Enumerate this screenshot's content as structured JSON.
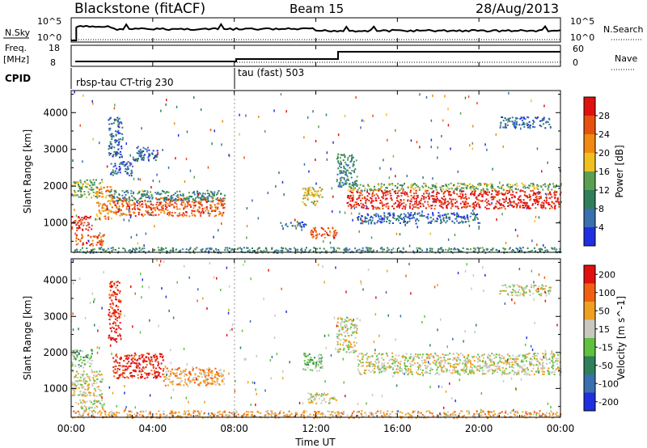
{
  "header": {
    "station": "Blackstone (fitACF)",
    "beam": "Beam 15",
    "date": "28/Aug/2013"
  },
  "strip_nsky": {
    "left_label": "N.Sky",
    "right_label": "N.Search",
    "tick_top": "10^5",
    "tick_bottom": "10^0"
  },
  "strip_freq": {
    "left_label_1": "Freq.",
    "left_label_2": "[MHz]",
    "left_tick_top": "18",
    "left_tick_bottom": "8",
    "right_label": "Nave",
    "right_tick_top": "60",
    "right_tick_bottom": "0"
  },
  "cpid": {
    "label": "CPID",
    "segments": [
      {
        "name": "rbsp-tau CT-trig 230",
        "start_h": 0,
        "end_h": 8
      },
      {
        "name": "tau (fast) 503",
        "start_h": 8,
        "end_h": 24
      }
    ]
  },
  "x_axis": {
    "title": "Time UT",
    "ticks": [
      "00:00",
      "04:00",
      "08:00",
      "12:00",
      "16:00",
      "20:00",
      "00:00"
    ],
    "range_h": [
      0,
      24
    ]
  },
  "colors": {
    "power_scale": [
      "#2030e0",
      "#3a6fb0",
      "#2e7f5a",
      "#5aa050",
      "#f0c020",
      "#f08a10",
      "#e85010",
      "#e01010"
    ],
    "velocity_scale": [
      "#2030e0",
      "#3a6fb0",
      "#2e7f5a",
      "#60c040",
      "#c8c8c0",
      "#f0a020",
      "#f06010",
      "#e01010"
    ]
  },
  "chart_data": [
    {
      "type": "heatmap",
      "title": "",
      "ylabel": "Slant Range [km]",
      "xlabel": "",
      "x_range_h": [
        0,
        24
      ],
      "ylim": [
        200,
        4600
      ],
      "y_ticks": [
        "1000",
        "2000",
        "3000",
        "4000"
      ],
      "y_tick_values": [
        1000,
        2000,
        3000,
        4000
      ],
      "colorbar_label": "Power [dB]",
      "colorbar_ticks": [
        "4",
        "8",
        "12",
        "16",
        "20",
        "24",
        "28"
      ],
      "colorbar_values": [
        4,
        8,
        12,
        16,
        20,
        24,
        28
      ],
      "features": [
        {
          "t0": 0.0,
          "t1": 1.0,
          "r0": 800,
          "r1": 1200,
          "level": 7
        },
        {
          "t0": 0.0,
          "t1": 1.5,
          "r0": 1700,
          "r1": 2200,
          "level": 3
        },
        {
          "t0": 0.2,
          "t1": 1.6,
          "r0": 400,
          "r1": 700,
          "level": 6
        },
        {
          "t0": 1.2,
          "t1": 2.0,
          "r0": 1100,
          "r1": 2000,
          "level": 5
        },
        {
          "t0": 2.0,
          "t1": 7.5,
          "r0": 1200,
          "r1": 1700,
          "level": 6
        },
        {
          "t0": 1.8,
          "t1": 7.5,
          "r0": 1600,
          "r1": 1900,
          "level": 2
        },
        {
          "t0": 1.9,
          "t1": 3.0,
          "r0": 2300,
          "r1": 2700,
          "level": 1
        },
        {
          "t0": 1.8,
          "t1": 2.5,
          "r0": 2800,
          "r1": 3900,
          "level": 1
        },
        {
          "t0": 3.0,
          "t1": 4.2,
          "r0": 2700,
          "r1": 3100,
          "level": 1
        },
        {
          "t0": 0.0,
          "t1": 24.0,
          "r0": 200,
          "r1": 350,
          "level": 2
        },
        {
          "t0": 10.2,
          "t1": 11.5,
          "r0": 900,
          "r1": 1050,
          "level": 1
        },
        {
          "t0": 11.3,
          "t1": 12.3,
          "r0": 1500,
          "r1": 2000,
          "level": 4
        },
        {
          "t0": 11.6,
          "t1": 13.0,
          "r0": 600,
          "r1": 900,
          "level": 6
        },
        {
          "t0": 13.0,
          "t1": 14.0,
          "r0": 2000,
          "r1": 2900,
          "level": 2
        },
        {
          "t0": 13.5,
          "t1": 24.0,
          "r0": 1400,
          "r1": 1900,
          "level": 7
        },
        {
          "t0": 13.5,
          "t1": 24.0,
          "r0": 1900,
          "r1": 2100,
          "level": 3
        },
        {
          "t0": 14.0,
          "t1": 20.0,
          "r0": 1000,
          "r1": 1300,
          "level": 1
        },
        {
          "t0": 21.0,
          "t1": 23.5,
          "r0": 3600,
          "r1": 3900,
          "level": 1
        }
      ]
    },
    {
      "type": "heatmap",
      "title": "",
      "ylabel": "Slant Range [km]",
      "xlabel": "Time UT",
      "x_range_h": [
        0,
        24
      ],
      "ylim": [
        200,
        4600
      ],
      "y_ticks": [
        "1000",
        "2000",
        "3000",
        "4000"
      ],
      "y_tick_values": [
        1000,
        2000,
        3000,
        4000
      ],
      "colorbar_label": "Velocity [m s^-1]",
      "colorbar_ticks": [
        "200",
        "100",
        "50",
        "15",
        "-15",
        "-50",
        "-100",
        "-200"
      ],
      "colorbar_values": [
        200,
        100,
        50,
        15,
        -15,
        -50,
        -100,
        -200
      ],
      "features": [
        {
          "t0": 0.0,
          "t1": 1.5,
          "r0": 800,
          "r1": 1500,
          "level": 4
        },
        {
          "t0": 0.0,
          "t1": 1.0,
          "r0": 1600,
          "r1": 2100,
          "level": 3
        },
        {
          "t0": 0.2,
          "t1": 1.6,
          "r0": 400,
          "r1": 700,
          "level": 4
        },
        {
          "t0": 2.0,
          "t1": 4.5,
          "r0": 1300,
          "r1": 2000,
          "level": 7
        },
        {
          "t0": 4.5,
          "t1": 7.5,
          "r0": 1100,
          "r1": 1600,
          "level": 5
        },
        {
          "t0": 1.8,
          "t1": 2.4,
          "r0": 2300,
          "r1": 4000,
          "level": 7
        },
        {
          "t0": 0.0,
          "t1": 24.0,
          "r0": 200,
          "r1": 400,
          "level": 5
        },
        {
          "t0": 11.3,
          "t1": 12.3,
          "r0": 1500,
          "r1": 2000,
          "level": 3
        },
        {
          "t0": 11.6,
          "t1": 13.0,
          "r0": 600,
          "r1": 900,
          "level": 4
        },
        {
          "t0": 13.0,
          "t1": 14.0,
          "r0": 2000,
          "r1": 3000,
          "level": 4
        },
        {
          "t0": 14.0,
          "t1": 24.0,
          "r0": 1400,
          "r1": 2000,
          "level": 4
        },
        {
          "t0": 21.0,
          "t1": 23.5,
          "r0": 3600,
          "r1": 3900,
          "level": 4
        }
      ]
    }
  ]
}
